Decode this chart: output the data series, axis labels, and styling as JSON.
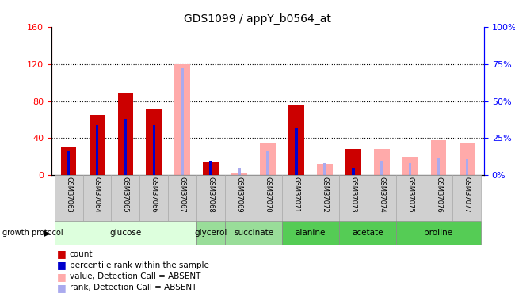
{
  "title": "GDS1099 / appY_b0564_at",
  "samples": [
    "GSM37063",
    "GSM37064",
    "GSM37065",
    "GSM37066",
    "GSM37067",
    "GSM37068",
    "GSM37069",
    "GSM37070",
    "GSM37071",
    "GSM37072",
    "GSM37073",
    "GSM37074",
    "GSM37075",
    "GSM37076",
    "GSM37077"
  ],
  "count_values": [
    30,
    65,
    88,
    72,
    0,
    15,
    0,
    0,
    76,
    0,
    28,
    0,
    0,
    0,
    0
  ],
  "percentile_values": [
    16,
    34,
    38,
    34,
    0,
    10,
    0,
    0,
    32,
    0,
    5,
    0,
    0,
    0,
    0
  ],
  "absent_value": [
    0,
    0,
    0,
    0,
    120,
    0,
    3,
    35,
    0,
    12,
    0,
    28,
    20,
    38,
    34
  ],
  "absent_rank": [
    0,
    0,
    0,
    0,
    72,
    0,
    5,
    16,
    0,
    8,
    0,
    10,
    8,
    12,
    11
  ],
  "ylim_left": [
    0,
    160
  ],
  "ylim_right": [
    0,
    100
  ],
  "yticks_left": [
    0,
    40,
    80,
    120,
    160
  ],
  "yticks_right": [
    0,
    25,
    50,
    75,
    100
  ],
  "bar_color_count": "#cc0000",
  "bar_color_percentile": "#0000cc",
  "bar_color_absent_value": "#ffaaaa",
  "bar_color_absent_rank": "#aaaaee",
  "groups": [
    {
      "label": "glucose",
      "indices": [
        0,
        1,
        2,
        3,
        4
      ],
      "color": "#ddffdd"
    },
    {
      "label": "glycerol",
      "indices": [
        5
      ],
      "color": "#99dd99"
    },
    {
      "label": "succinate",
      "indices": [
        6,
        7
      ],
      "color": "#99dd99"
    },
    {
      "label": "alanine",
      "indices": [
        8,
        9
      ],
      "color": "#55cc55"
    },
    {
      "label": "acetate",
      "indices": [
        10,
        11
      ],
      "color": "#55cc55"
    },
    {
      "label": "proline",
      "indices": [
        12,
        13,
        14
      ],
      "color": "#55cc55"
    }
  ]
}
